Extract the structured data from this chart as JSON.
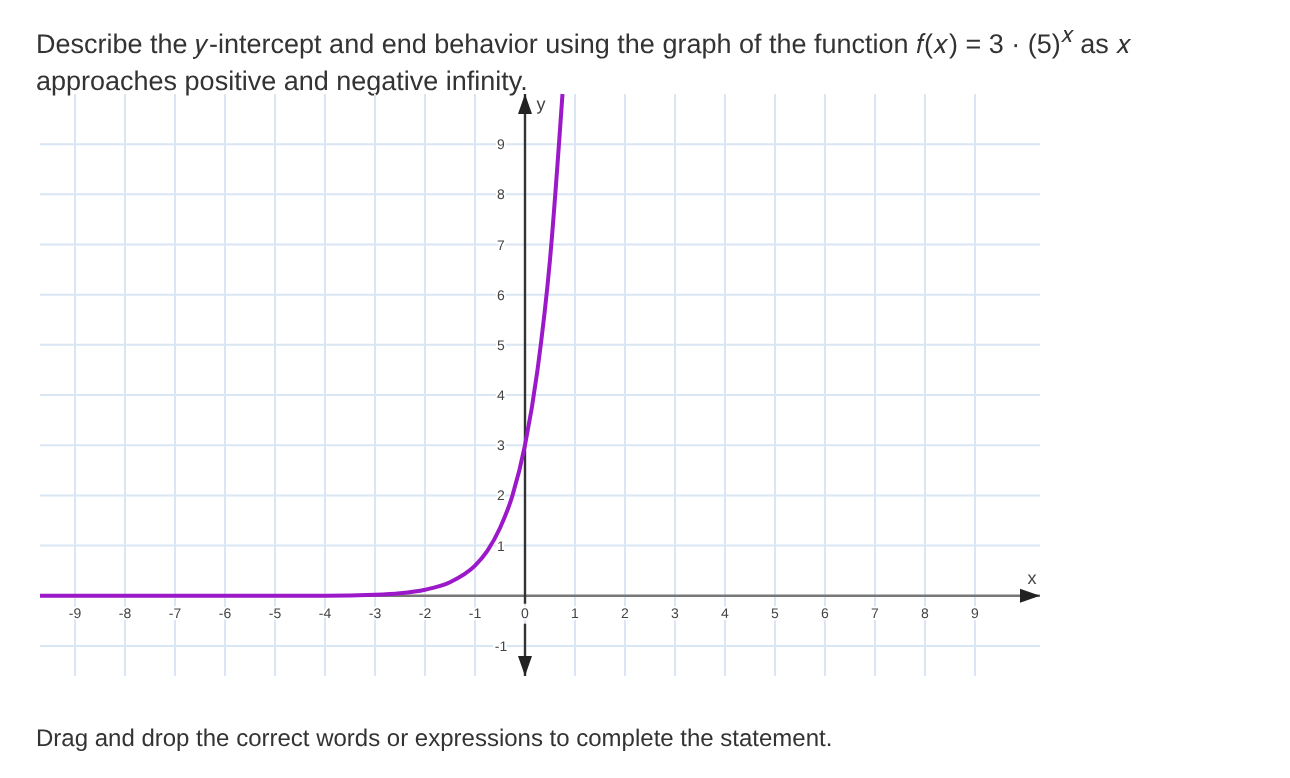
{
  "chart_data": {
    "type": "line",
    "title": "Describe the 𝑦-intercept and end behavior using the graph of the function 𝑓(𝑥) = 3 · (5)$^{𝑥}$ as 𝑥 approaches positive and negative infinity.",
    "xlabel": "x",
    "ylabel": "y",
    "annotations": [
      "Drag and drop the correct words or expressions to complete the statement."
    ],
    "x": [
      -9.7,
      -5,
      -4,
      -3,
      -2.5,
      -2,
      -1.5,
      -1,
      -0.75,
      -0.5,
      -0.25,
      0,
      0.25,
      0.5,
      0.75
    ],
    "series": [
      {
        "color": "#9b19c9",
        "values": [
          0,
          0,
          0,
          0.02,
          0.05,
          0.12,
          0.27,
          0.6,
          0.9,
          1.35,
          2,
          3,
          4.5,
          6.7,
          10
        ]
      }
    ],
    "xlim": [
      -9.7,
      10.3
    ],
    "ylim": [
      -1.6,
      10
    ],
    "xticks": [
      -9,
      -8,
      -7,
      -6,
      -5,
      -4,
      -3,
      -2,
      -1,
      0,
      1,
      2,
      3,
      4,
      5,
      6,
      7,
      8,
      9
    ],
    "yticks": [
      -1,
      1,
      2,
      3,
      4,
      5,
      6,
      7,
      8,
      9
    ],
    "grid": true,
    "marker": "none",
    "line_style": "solid"
  }
}
